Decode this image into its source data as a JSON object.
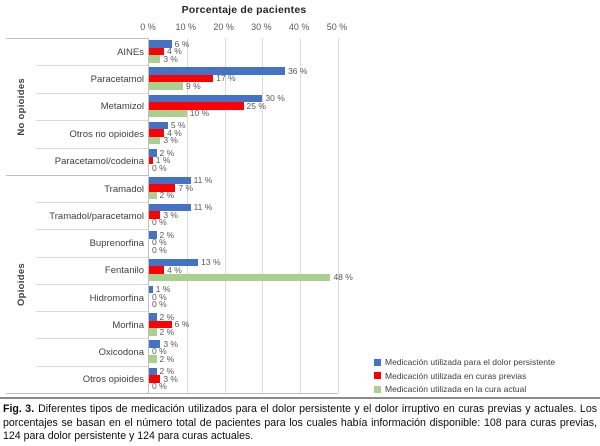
{
  "chart_data": {
    "type": "bar",
    "orientation": "horizontal",
    "title": "Porcentaje de pacientes",
    "xlabel": "Porcentaje de pacientes",
    "xlim": [
      0,
      50
    ],
    "x_ticks": [
      0,
      10,
      20,
      30,
      40,
      50
    ],
    "tick_suffix": " %",
    "value_suffix": " %",
    "gridlines": true,
    "legend_position": "bottom-right",
    "groups": [
      {
        "label": "No opioides",
        "categories": [
          "AINEs",
          "Paracetamol",
          "Metamizol",
          "Otros no opioides",
          "Paracetamol/codeina"
        ]
      },
      {
        "label": "Opioides",
        "categories": [
          "Tramadol",
          "Tramadol/paracetamol",
          "Buprenorfina",
          "Fentanilo",
          "Hidromorfina",
          "Morfina",
          "Oxicodona",
          "Otros opioides"
        ]
      }
    ],
    "series": [
      {
        "name": "Medicación utilizada para el dolor persistente",
        "color": "#4472C4",
        "values": [
          6,
          36,
          30,
          5,
          2,
          11,
          11,
          2,
          13,
          1,
          2,
          3,
          2
        ]
      },
      {
        "name": "Medicación utilizada en curas previas",
        "color": "#FF0000",
        "values": [
          4,
          17,
          25,
          4,
          1,
          7,
          3,
          0,
          4,
          0,
          6,
          0,
          3
        ]
      },
      {
        "name": "Medicación utilizada en la cura actual",
        "color": "#A9D08E",
        "values": [
          3,
          9,
          10,
          3,
          0,
          2,
          0,
          0,
          48,
          0,
          2,
          2,
          0
        ]
      }
    ]
  },
  "caption": {
    "fig_label": "Fig. 3.",
    "text": "Diferentes tipos de medicación utilizados para el dolor persistente y el dolor irruptivo en curas previas y actuales. Los porcentajes se basan en el número total de pacientes para los cuales había información disponible: 108 para curas previas, 124 para dolor persistente y 124 para curas actuales."
  }
}
